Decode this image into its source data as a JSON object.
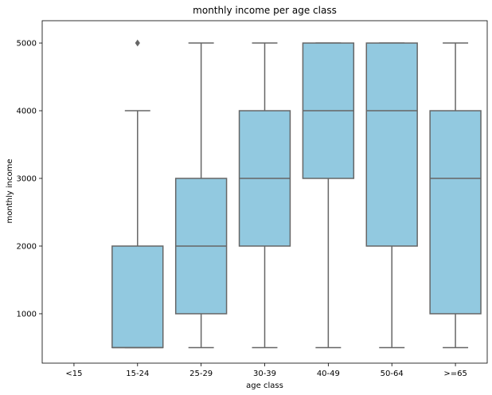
{
  "chart_data": {
    "type": "box",
    "title": "monthly income per age class",
    "xlabel": "age class",
    "ylabel": "monthly income",
    "categories": [
      "<15",
      "15-24",
      "25-29",
      "30-39",
      "40-49",
      "50-64",
      ">=65"
    ],
    "ylim": [
      270,
      5330
    ],
    "yticks": [
      1000,
      2000,
      3000,
      4000,
      5000
    ],
    "grid": false,
    "box_color": "#92c9e0",
    "line_color": "#666666",
    "boxes": [
      null,
      {
        "whisker_low": 500,
        "q1": 500,
        "median": 500,
        "q3": 2000,
        "whisker_high": 4000,
        "outliers": [
          5000
        ]
      },
      {
        "whisker_low": 500,
        "q1": 1000,
        "median": 2000,
        "q3": 3000,
        "whisker_high": 5000,
        "outliers": []
      },
      {
        "whisker_low": 500,
        "q1": 2000,
        "median": 3000,
        "q3": 4000,
        "whisker_high": 5000,
        "outliers": []
      },
      {
        "whisker_low": 500,
        "q1": 3000,
        "median": 4000,
        "q3": 5000,
        "whisker_high": 5000,
        "outliers": []
      },
      {
        "whisker_low": 500,
        "q1": 2000,
        "median": 4000,
        "q3": 5000,
        "whisker_high": 5000,
        "outliers": []
      },
      {
        "whisker_low": 500,
        "q1": 1000,
        "median": 3000,
        "q3": 4000,
        "whisker_high": 5000,
        "outliers": []
      }
    ]
  }
}
